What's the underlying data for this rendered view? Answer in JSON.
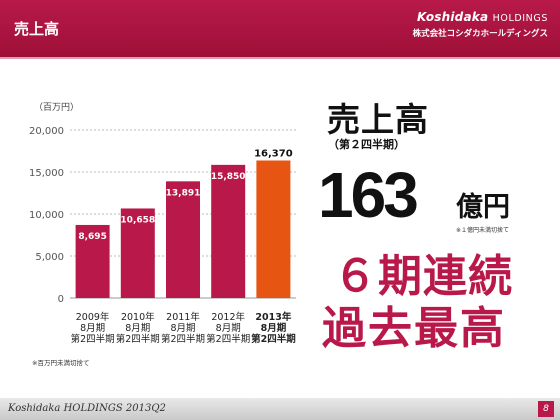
{
  "header": {
    "title": "売上高",
    "brand_main": "Koshidaka",
    "brand_holdings": "HOLDINGS",
    "brand_sub": "株式会社コシダカホールディングス"
  },
  "unit_label": "（百万円）",
  "footnote": "※百万円未満切捨て",
  "highlight": {
    "title": "売上高",
    "subtitle": "（第２四半期）",
    "value": "163",
    "unit": "億円",
    "unit_note": "※１億円未満切捨て",
    "record_line1": "６期連続",
    "record_line2": "過去最高"
  },
  "chart_data": {
    "type": "bar",
    "categories": [
      "2009年 8月期 第2四半期",
      "2010年 8月期 第2四半期",
      "2011年 8月期 第2四半期",
      "2012年 8月期 第2四半期",
      "2013年 8月期 第2四半期"
    ],
    "category_lines": [
      [
        "2009年",
        "8月期",
        "第2四半期"
      ],
      [
        "2010年",
        "8月期",
        "第2四半期"
      ],
      [
        "2011年",
        "8月期",
        "第2四半期"
      ],
      [
        "2012年",
        "8月期",
        "第2四半期"
      ],
      [
        "2013年",
        "8月期",
        "第2四半期"
      ]
    ],
    "values": [
      8695,
      10658,
      13891,
      15850,
      16370
    ],
    "value_labels": [
      "8,695",
      "10,658",
      "13,891",
      "15,850",
      "16,370"
    ],
    "ylim": [
      0,
      20000
    ],
    "yticks": [
      0,
      5000,
      10000,
      15000,
      20000
    ],
    "ytick_labels": [
      "0",
      "5,000",
      "10,000",
      "15,000",
      "20,000"
    ],
    "colors": [
      "#b8194a",
      "#b8194a",
      "#b8194a",
      "#b8194a",
      "#e75512"
    ],
    "highlight_index": 4,
    "grid": true
  },
  "footer": {
    "brand": "Koshidaka",
    "rest": "HOLDINGS 2013Q2",
    "page": "8"
  }
}
